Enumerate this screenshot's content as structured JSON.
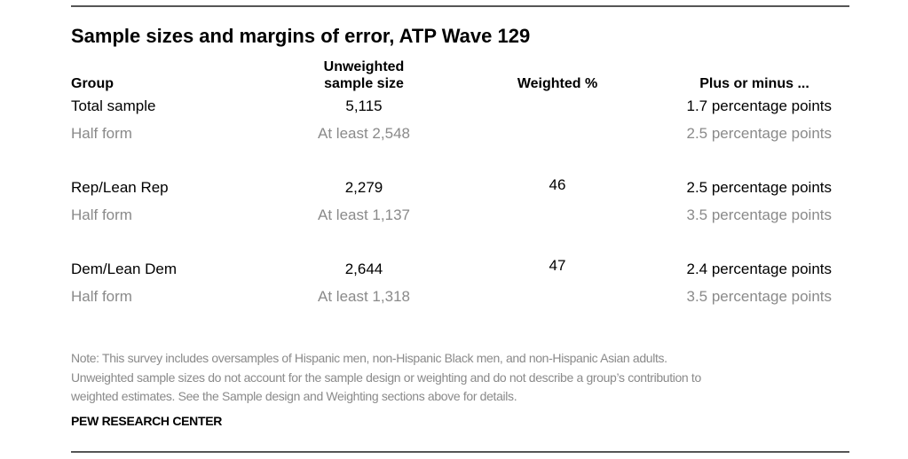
{
  "title": "Sample sizes and margins of error, ATP Wave 129",
  "headers": {
    "group": "Group",
    "unweighted_line1": "Unweighted",
    "unweighted_line2": "sample size",
    "weighted": "Weighted %",
    "plus_minus": "Plus or minus ..."
  },
  "rows": [
    {
      "group": "Total sample",
      "unweighted": "5,115",
      "weighted": "",
      "moe": "1.7 percentage points",
      "sub": {
        "group": "Half form",
        "unweighted": "At least 2,548",
        "moe": "2.5 percentage points"
      }
    },
    {
      "group": "Rep/Lean Rep",
      "unweighted": "2,279",
      "weighted": "46",
      "moe": "2.5 percentage points",
      "sub": {
        "group": "Half form",
        "unweighted": "At least 1,137",
        "moe": "3.5 percentage points"
      }
    },
    {
      "group": "Dem/Lean Dem",
      "unweighted": "2,644",
      "weighted": "47",
      "moe": "2.4 percentage points",
      "sub": {
        "group": "Half form",
        "unweighted": "At least 1,318",
        "moe": "3.5 percentage points"
      }
    }
  ],
  "note_lines": [
    "Note: This survey includes oversamples of Hispanic men, non-Hispanic Black men, and non-Hispanic Asian adults.",
    "Unweighted sample sizes do not account for the sample design or weighting and do not describe a group’s contribution to",
    "weighted estimates. See the Sample design and Weighting sections above for details."
  ],
  "source": "PEW RESEARCH CENTER"
}
